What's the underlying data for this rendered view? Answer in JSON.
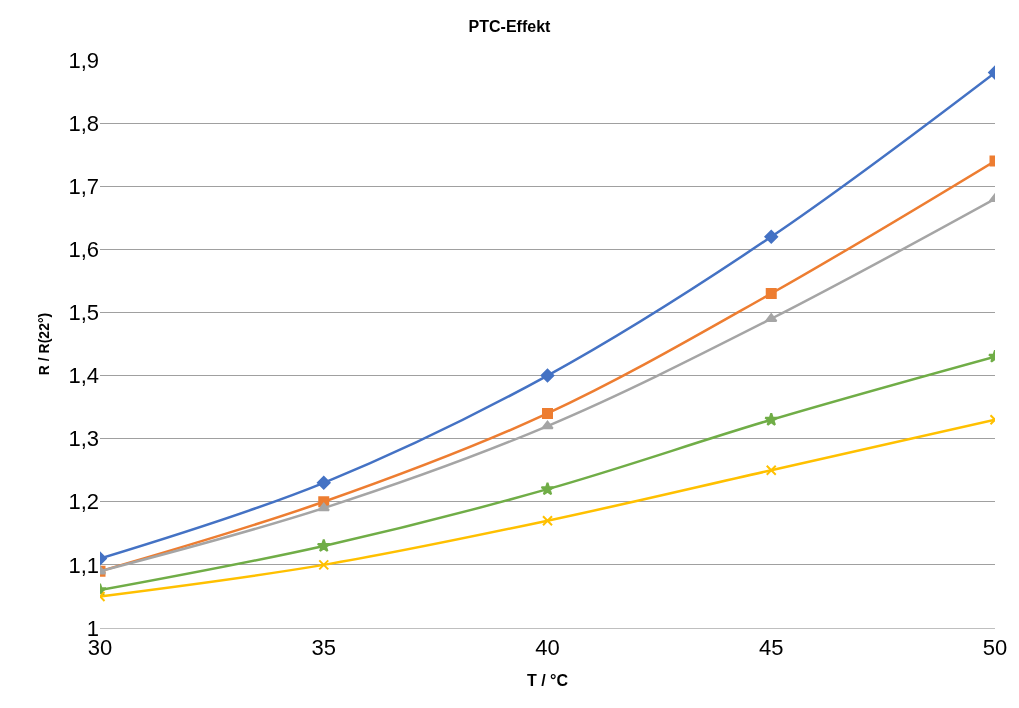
{
  "chart_data": {
    "type": "line",
    "title": "PTC-Effekt",
    "xlabel": "T / °C",
    "ylabel": "R / R(22°)",
    "x": [
      30,
      35,
      40,
      45,
      50
    ],
    "series": [
      {
        "color": "#4472c4",
        "marker": "diamond",
        "values": [
          1.11,
          1.23,
          1.4,
          1.62,
          1.88
        ]
      },
      {
        "color": "#ed7d31",
        "marker": "square",
        "values": [
          1.09,
          1.2,
          1.34,
          1.53,
          1.74
        ]
      },
      {
        "color": "#a5a5a5",
        "marker": "triangle",
        "values": [
          1.09,
          1.19,
          1.32,
          1.49,
          1.68
        ]
      },
      {
        "color": "#70ad47",
        "marker": "star",
        "values": [
          1.06,
          1.13,
          1.22,
          1.33,
          1.43
        ]
      },
      {
        "color": "#ffc000",
        "marker": "cross",
        "values": [
          1.05,
          1.1,
          1.17,
          1.25,
          1.33
        ]
      }
    ],
    "xlim": [
      30,
      50
    ],
    "xticks": [
      30,
      35,
      40,
      45,
      50
    ],
    "ylim": [
      1,
      1.9
    ],
    "yticks": [
      {
        "value": 1,
        "label": "1"
      },
      {
        "value": 1.1,
        "label": "1,1"
      },
      {
        "value": 1.2,
        "label": "1,2"
      },
      {
        "value": 1.3,
        "label": "1,3"
      },
      {
        "value": 1.4,
        "label": "1,4"
      },
      {
        "value": 1.5,
        "label": "1,5"
      },
      {
        "value": 1.6,
        "label": "1,6"
      },
      {
        "value": 1.7,
        "label": "1,7"
      },
      {
        "value": 1.8,
        "label": "1,8"
      },
      {
        "value": 1.9,
        "label": "1,9"
      }
    ],
    "grid": "y",
    "line_style": "solid"
  }
}
